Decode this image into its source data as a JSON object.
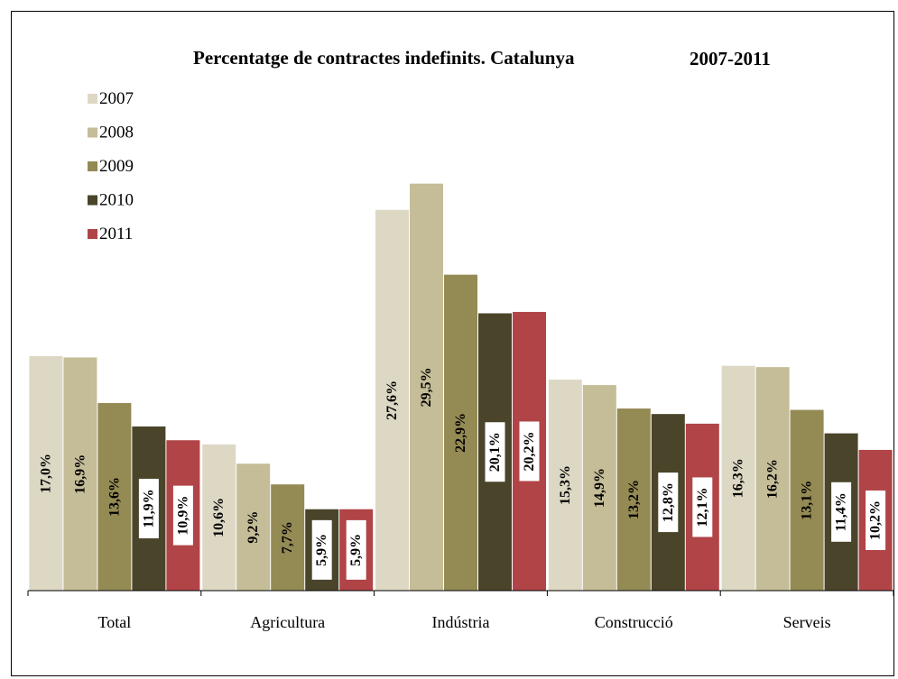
{
  "chart_data": {
    "type": "bar",
    "title_main": "Percentatge de contractes indefinits. Catalunya",
    "title_years": "2007-2011",
    "categories": [
      "Total",
      "Agricultura",
      "Indústria",
      "Construcció",
      "Serveis"
    ],
    "series": [
      {
        "name": "2007",
        "color": "#ddd8c4",
        "values": [
          17.0,
          10.6,
          27.6,
          15.3,
          16.3
        ],
        "labels": [
          "17,0%",
          "10,6%",
          "27,6%",
          "15,3%",
          "16,3%"
        ]
      },
      {
        "name": "2008",
        "color": "#c5bc98",
        "values": [
          16.9,
          9.2,
          29.5,
          14.9,
          16.2
        ],
        "labels": [
          "16,9%",
          "9,2%",
          "29,5%",
          "14,9%",
          "16,2%"
        ]
      },
      {
        "name": "2009",
        "color": "#948a54",
        "values": [
          13.6,
          7.7,
          22.9,
          13.2,
          13.1
        ],
        "labels": [
          "13,6%",
          "7,7%",
          "22,9%",
          "13,2%",
          "13,1%"
        ]
      },
      {
        "name": "2010",
        "color": "#4a452a",
        "values": [
          11.9,
          5.9,
          20.1,
          12.8,
          11.4
        ],
        "labels": [
          "11,9%",
          "5,9%",
          "20,1%",
          "12,8%",
          "11,4%"
        ]
      },
      {
        "name": "2011",
        "color": "#b04447",
        "values": [
          10.9,
          5.9,
          20.2,
          12.1,
          10.2
        ],
        "labels": [
          "10,9%",
          "5,9%",
          "20,2%",
          "12,1%",
          "10,2%"
        ]
      }
    ],
    "ylim": [
      0,
      30
    ],
    "legend_position": "top-left",
    "grid": false
  }
}
